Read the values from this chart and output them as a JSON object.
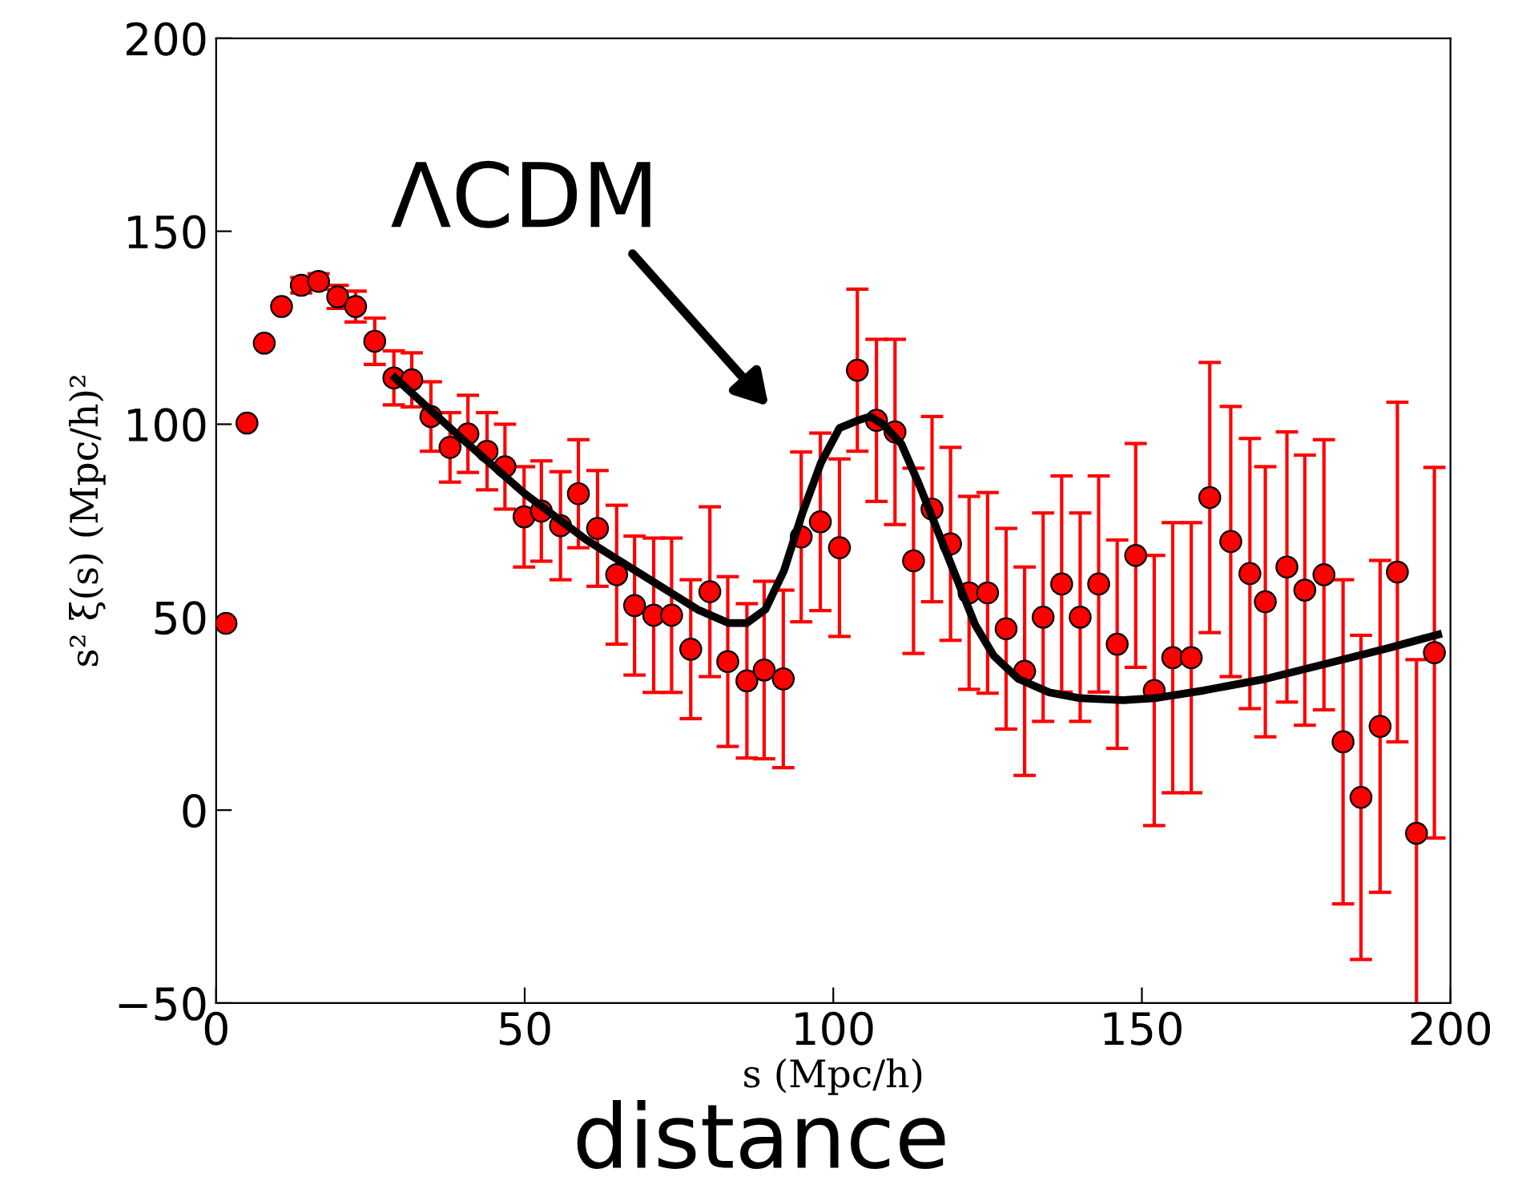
{
  "chart_data": {
    "type": "scatter",
    "xlabel": "s (Mpc/h)",
    "ylabel": "s² ξ(s) (Mpc/h)²",
    "xlim": [
      0,
      200
    ],
    "ylim": [
      -50,
      200
    ],
    "xticks": [
      0,
      50,
      100,
      150,
      200
    ],
    "yticks": [
      {
        "value": -50,
        "label": "−50"
      },
      0,
      50,
      100,
      150,
      200
    ],
    "grid": false,
    "legend": false,
    "marker": "circle",
    "series": [
      {
        "color": "#ff0000",
        "x": [
          1.6,
          5,
          7.8,
          10.6,
          13.8,
          16.6,
          19.7,
          22.6,
          25.7,
          28.8,
          31.7,
          34.8,
          37.9,
          40.8,
          43.9,
          46.8,
          49.9,
          52.7,
          55.8,
          58.7,
          61.8,
          64.9,
          67.8,
          70.9,
          73.8,
          76.9,
          80,
          82.9,
          86,
          88.8,
          91.9,
          94.8,
          97.9,
          101,
          103.9,
          107,
          110,
          113,
          116,
          119,
          122,
          125,
          128,
          131,
          134,
          137,
          140,
          143,
          146,
          149,
          152,
          155,
          158,
          161,
          164.4,
          167.5,
          170,
          173.5,
          176.4,
          179.5,
          182.6,
          185.5,
          188.6,
          191.4,
          194.5,
          197.4
        ],
        "values": [
          48.4,
          100.3,
          121,
          130.5,
          136,
          137,
          133,
          130.5,
          121.5,
          112,
          111.5,
          102,
          94,
          97.5,
          93,
          89,
          76,
          77.5,
          73.7,
          82,
          73,
          61,
          53,
          50.5,
          50.5,
          41.7,
          56.6,
          38.5,
          33.5,
          36.3,
          34,
          70.8,
          74.7,
          68,
          114,
          101,
          98,
          64.6,
          78,
          69,
          56.3,
          56.3,
          47,
          36,
          50,
          58.6,
          50,
          58.6,
          43,
          66,
          31,
          39.5,
          39.5,
          81,
          69.6,
          61.3,
          54,
          63,
          57,
          61,
          17.7,
          3.3,
          21.7,
          61.7,
          -6,
          40.8
        ],
        "errors": [
          null,
          null,
          null,
          null,
          2,
          2,
          3,
          4,
          6,
          7,
          7,
          9,
          9,
          10,
          10,
          11,
          13,
          13,
          14,
          14,
          15,
          18,
          18,
          20,
          20,
          18,
          22,
          22,
          20,
          23,
          23,
          22,
          23,
          23,
          21,
          21,
          24,
          24,
          24,
          25,
          25,
          26,
          26,
          27,
          27,
          28,
          27,
          28,
          27,
          29,
          35,
          35,
          35,
          35,
          35,
          35,
          35,
          35,
          35,
          35,
          42,
          42,
          43,
          44,
          45,
          48
        ]
      },
      {
        "type": "line",
        "color": "#000000",
        "line_style": "solid",
        "marker": "none",
        "x": [
          29,
          40,
          50,
          60,
          70,
          78,
          83,
          86,
          89,
          92,
          95,
          98,
          101,
          104,
          106,
          108,
          111,
          114,
          117,
          120,
          123,
          126,
          130,
          135,
          140,
          147,
          152,
          160,
          170,
          180,
          190,
          198
        ],
        "values": [
          112,
          96,
          82,
          70,
          60,
          52,
          48.5,
          48.5,
          52,
          62,
          77,
          90,
          99,
          101,
          102,
          100,
          95,
          84,
          72,
          60,
          48,
          40,
          34,
          30.5,
          29,
          28.5,
          29,
          31,
          34,
          38,
          42,
          45.5
        ]
      }
    ],
    "annotations": [
      "ΛCDM",
      "distance"
    ]
  }
}
